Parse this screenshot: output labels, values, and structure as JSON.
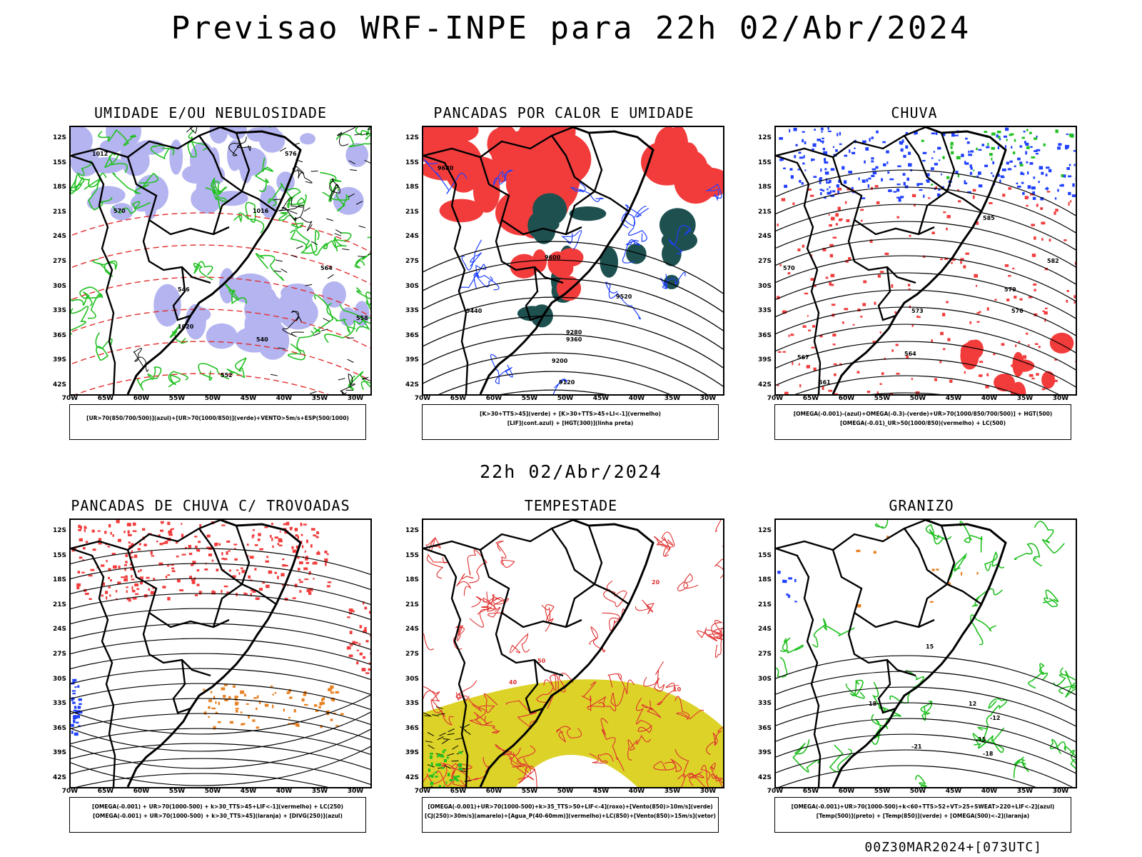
{
  "title": "Previsao WRF-INPE  para 22h 02/Abr/2024",
  "subtitle": "22h 02/Abr/2024",
  "run_info": "00Z30MAR2024+[073UTC]",
  "lat_labels": [
    "12S",
    "15S",
    "18S",
    "21S",
    "24S",
    "27S",
    "30S",
    "33S",
    "36S",
    "39S",
    "42S"
  ],
  "lon_labels": [
    "70W",
    "65W",
    "60W",
    "55W",
    "50W",
    "45W",
    "40W",
    "35W",
    "30W"
  ],
  "panels": [
    {
      "title": "UMIDADE E/OU NEBULOSIDADE",
      "legend": [
        "[UR>70(850/700/500)](azul)+[UR>70(1000/850)](verde)+VENTO>5m/s+ESP(500/1000)"
      ],
      "contour_labels": [
        "1012",
        "1016",
        "1020",
        "570",
        "576",
        "558",
        "552",
        "546",
        "540",
        "564"
      ]
    },
    {
      "title": "PANCADAS POR CALOR E UMIDADE",
      "legend": [
        "[K>30+TTS>45](verde) + [K>30+TTS>45+LI<-1](vermelho)",
        "[LIF](cont.azul) + [HGT(300)](linha preta)"
      ],
      "contour_labels": [
        "9680",
        "9600",
        "9520",
        "9440",
        "9360",
        "9280",
        "9200",
        "9120"
      ]
    },
    {
      "title": "CHUVA",
      "legend": [
        "[OMEGA(-0.001)-(azul)+OMEGA(-0.3)-(verde)+UR>70(1000/850/700/500)] + HGT(500)",
        "[OMEGA(-0.01)_UR>50(1000/850)(vermelho) + LC(500)"
      ],
      "contour_labels": [
        "585",
        "582",
        "579",
        "576",
        "573",
        "570",
        "567",
        "564",
        "561"
      ]
    },
    {
      "title": "PANCADAS DE CHUVA C/ TROVOADAS",
      "legend": [
        "[OMEGA(-0.001) + UR>70(1000-500) + k>30_TTS>45+LIF<-1](vermelho) + LC(250)",
        "[OMEGA(-0.001) + UR>70(1000-500) + k>30_TTS>45](laranja) + [DIVG(250)](azul)"
      ],
      "contour_labels": []
    },
    {
      "title": "TEMPESTADE",
      "legend": [
        "[OMEGA(-0.001)+UR>70(1000-500)+k>35_TTS>50+LIF<-4](roxo)+[Vento(850)>10m/s](verde)",
        "[CJ(250)>30m/s](amarelo)+[Agua_P(40-60mm)](vermelho)+LC(850)+[Vento(850)>15m/s](vetor)"
      ],
      "contour_labels": [
        "10",
        "20",
        "40",
        "50"
      ]
    },
    {
      "title": "GRANIZO",
      "legend": [
        "[OMEGA(-0.001)+UR>70(1000-500)+k<60+TTS>52+VT>25+SWEAT>220+LIF<-2](azul)",
        "[Temp(500)](preto) + [Temp(850)](verde) + [OMEGA(500)<-2](laranja)"
      ],
      "contour_labels": [
        "-12",
        "-15",
        "-18",
        "-21",
        "15",
        "18",
        "12"
      ]
    }
  ],
  "colors": {
    "red": "#f23c3c",
    "green": "#22c022",
    "lavender": "#b4b4f0",
    "blue": "#2040ff",
    "dark_teal": "#1e5050",
    "yellow": "#dcd228",
    "orange": "#e88020"
  }
}
